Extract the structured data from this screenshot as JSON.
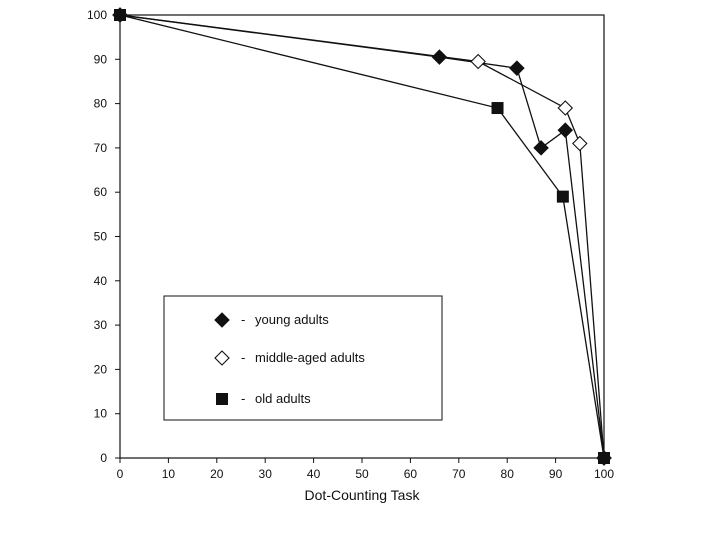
{
  "chart_data": {
    "type": "line",
    "title": "",
    "xlabel": "Dot-Counting Task",
    "ylabel": "",
    "xlim": [
      0,
      100
    ],
    "ylim": [
      0,
      100
    ],
    "x_ticks": [
      0,
      10,
      20,
      30,
      40,
      50,
      60,
      70,
      80,
      90,
      100
    ],
    "y_ticks": [
      0,
      10,
      20,
      30,
      40,
      50,
      60,
      70,
      80,
      90,
      100
    ],
    "grid": false,
    "legend": {
      "placement": "lower-left",
      "entries": [
        "young adults",
        "middle-aged adults",
        "old adults"
      ],
      "separator": "-"
    },
    "series": [
      {
        "name": "young adults",
        "marker": "diamond-filled",
        "color": "#111111",
        "x": [
          0,
          66,
          82,
          87,
          92,
          100
        ],
        "y": [
          100,
          90.5,
          88,
          70,
          74,
          0
        ]
      },
      {
        "name": "middle-aged adults",
        "marker": "diamond-open",
        "color": "#111111",
        "x": [
          0,
          74,
          92,
          95,
          100
        ],
        "y": [
          100,
          89.5,
          79,
          71,
          0
        ]
      },
      {
        "name": "old adults",
        "marker": "square-filled",
        "color": "#111111",
        "x": [
          0,
          78,
          91.5,
          100
        ],
        "y": [
          100,
          79,
          59,
          0
        ]
      }
    ]
  }
}
